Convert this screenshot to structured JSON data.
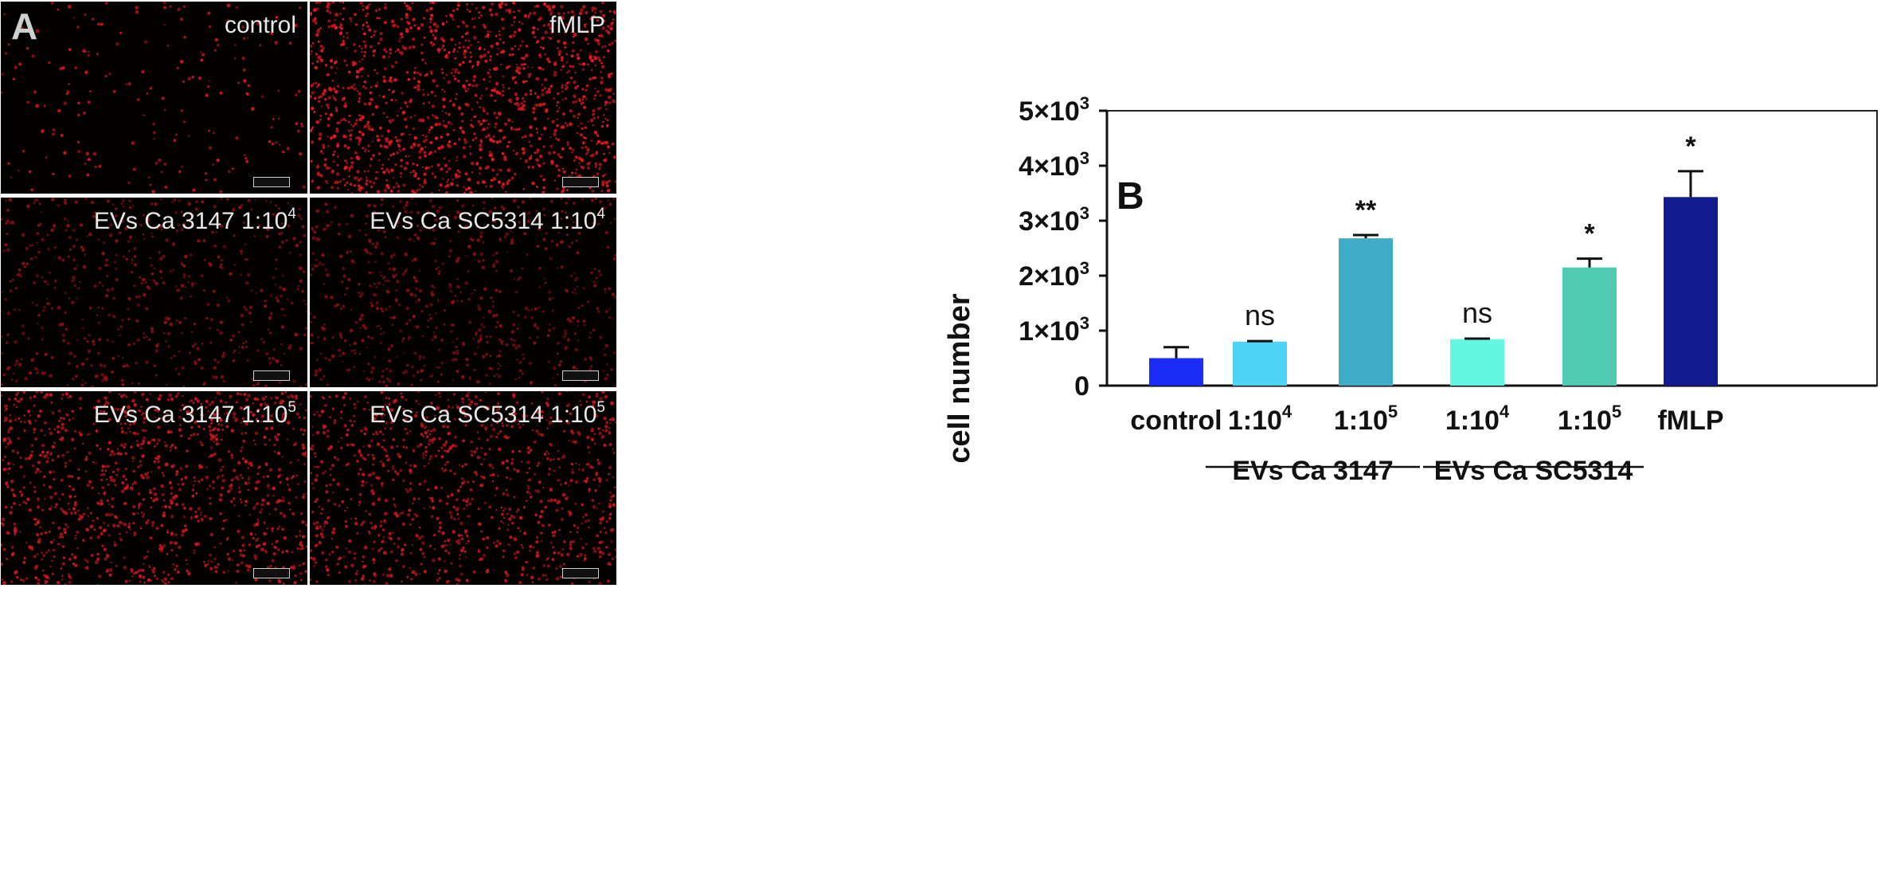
{
  "panel_a": {
    "letter": "A",
    "images": [
      {
        "label": "control",
        "sup": "",
        "density": 360,
        "color": "#d0161b"
      },
      {
        "label": "fMLP",
        "sup": "",
        "density": 2600,
        "color": "#e3191e"
      },
      {
        "label": "EVs Ca 3147 1:10",
        "sup": "4",
        "density": 1050,
        "color": "#8e0f13"
      },
      {
        "label": "EVs Ca SC5314 1:10",
        "sup": "4",
        "density": 1250,
        "color": "#8a0e12"
      },
      {
        "label": "EVs Ca 3147 1:10",
        "sup": "5",
        "density": 2100,
        "color": "#c9171c"
      },
      {
        "label": "EVs Ca SC5314 1:10",
        "sup": "5",
        "density": 1900,
        "color": "#c4161b"
      }
    ]
  },
  "chart_data": {
    "type": "bar",
    "panel_letter": "B",
    "ylabel": "cell number",
    "ylim": [
      0,
      5000
    ],
    "yticks": [
      {
        "value": 0,
        "mant": "0",
        "exp": ""
      },
      {
        "value": 1000,
        "mant": "1×10",
        "exp": "3"
      },
      {
        "value": 2000,
        "mant": "2×10",
        "exp": "3"
      },
      {
        "value": 3000,
        "mant": "3×10",
        "exp": "3"
      },
      {
        "value": 4000,
        "mant": "4×10",
        "exp": "3"
      },
      {
        "value": 5000,
        "mant": "5×10",
        "exp": "3"
      }
    ],
    "bars": [
      {
        "label": "control",
        "sup": "",
        "value": 500,
        "error": 200,
        "sig": "",
        "color": "#1a2cf5"
      },
      {
        "label": "1:10",
        "sup": "4",
        "value": 800,
        "error": 10,
        "sig": "ns",
        "color": "#4fd3f4"
      },
      {
        "label": "1:10",
        "sup": "5",
        "value": 2680,
        "error": 60,
        "sig": "**",
        "color": "#40acc8"
      },
      {
        "label": "1:10",
        "sup": "4",
        "value": 845,
        "error": 10,
        "sig": "ns",
        "color": "#63f6e0"
      },
      {
        "label": "1:10",
        "sup": "5",
        "value": 2150,
        "error": 160,
        "sig": "*",
        "color": "#4ecbb1"
      },
      {
        "label": "fMLP",
        "sup": "",
        "value": 3430,
        "error": 470,
        "sig": "*",
        "color": "#141a8f"
      }
    ],
    "groups": [
      {
        "label": "EVs Ca 3147",
        "bars": [
          1,
          2
        ]
      },
      {
        "label": "EVs Ca SC5314",
        "bars": [
          3,
          4
        ]
      }
    ]
  }
}
